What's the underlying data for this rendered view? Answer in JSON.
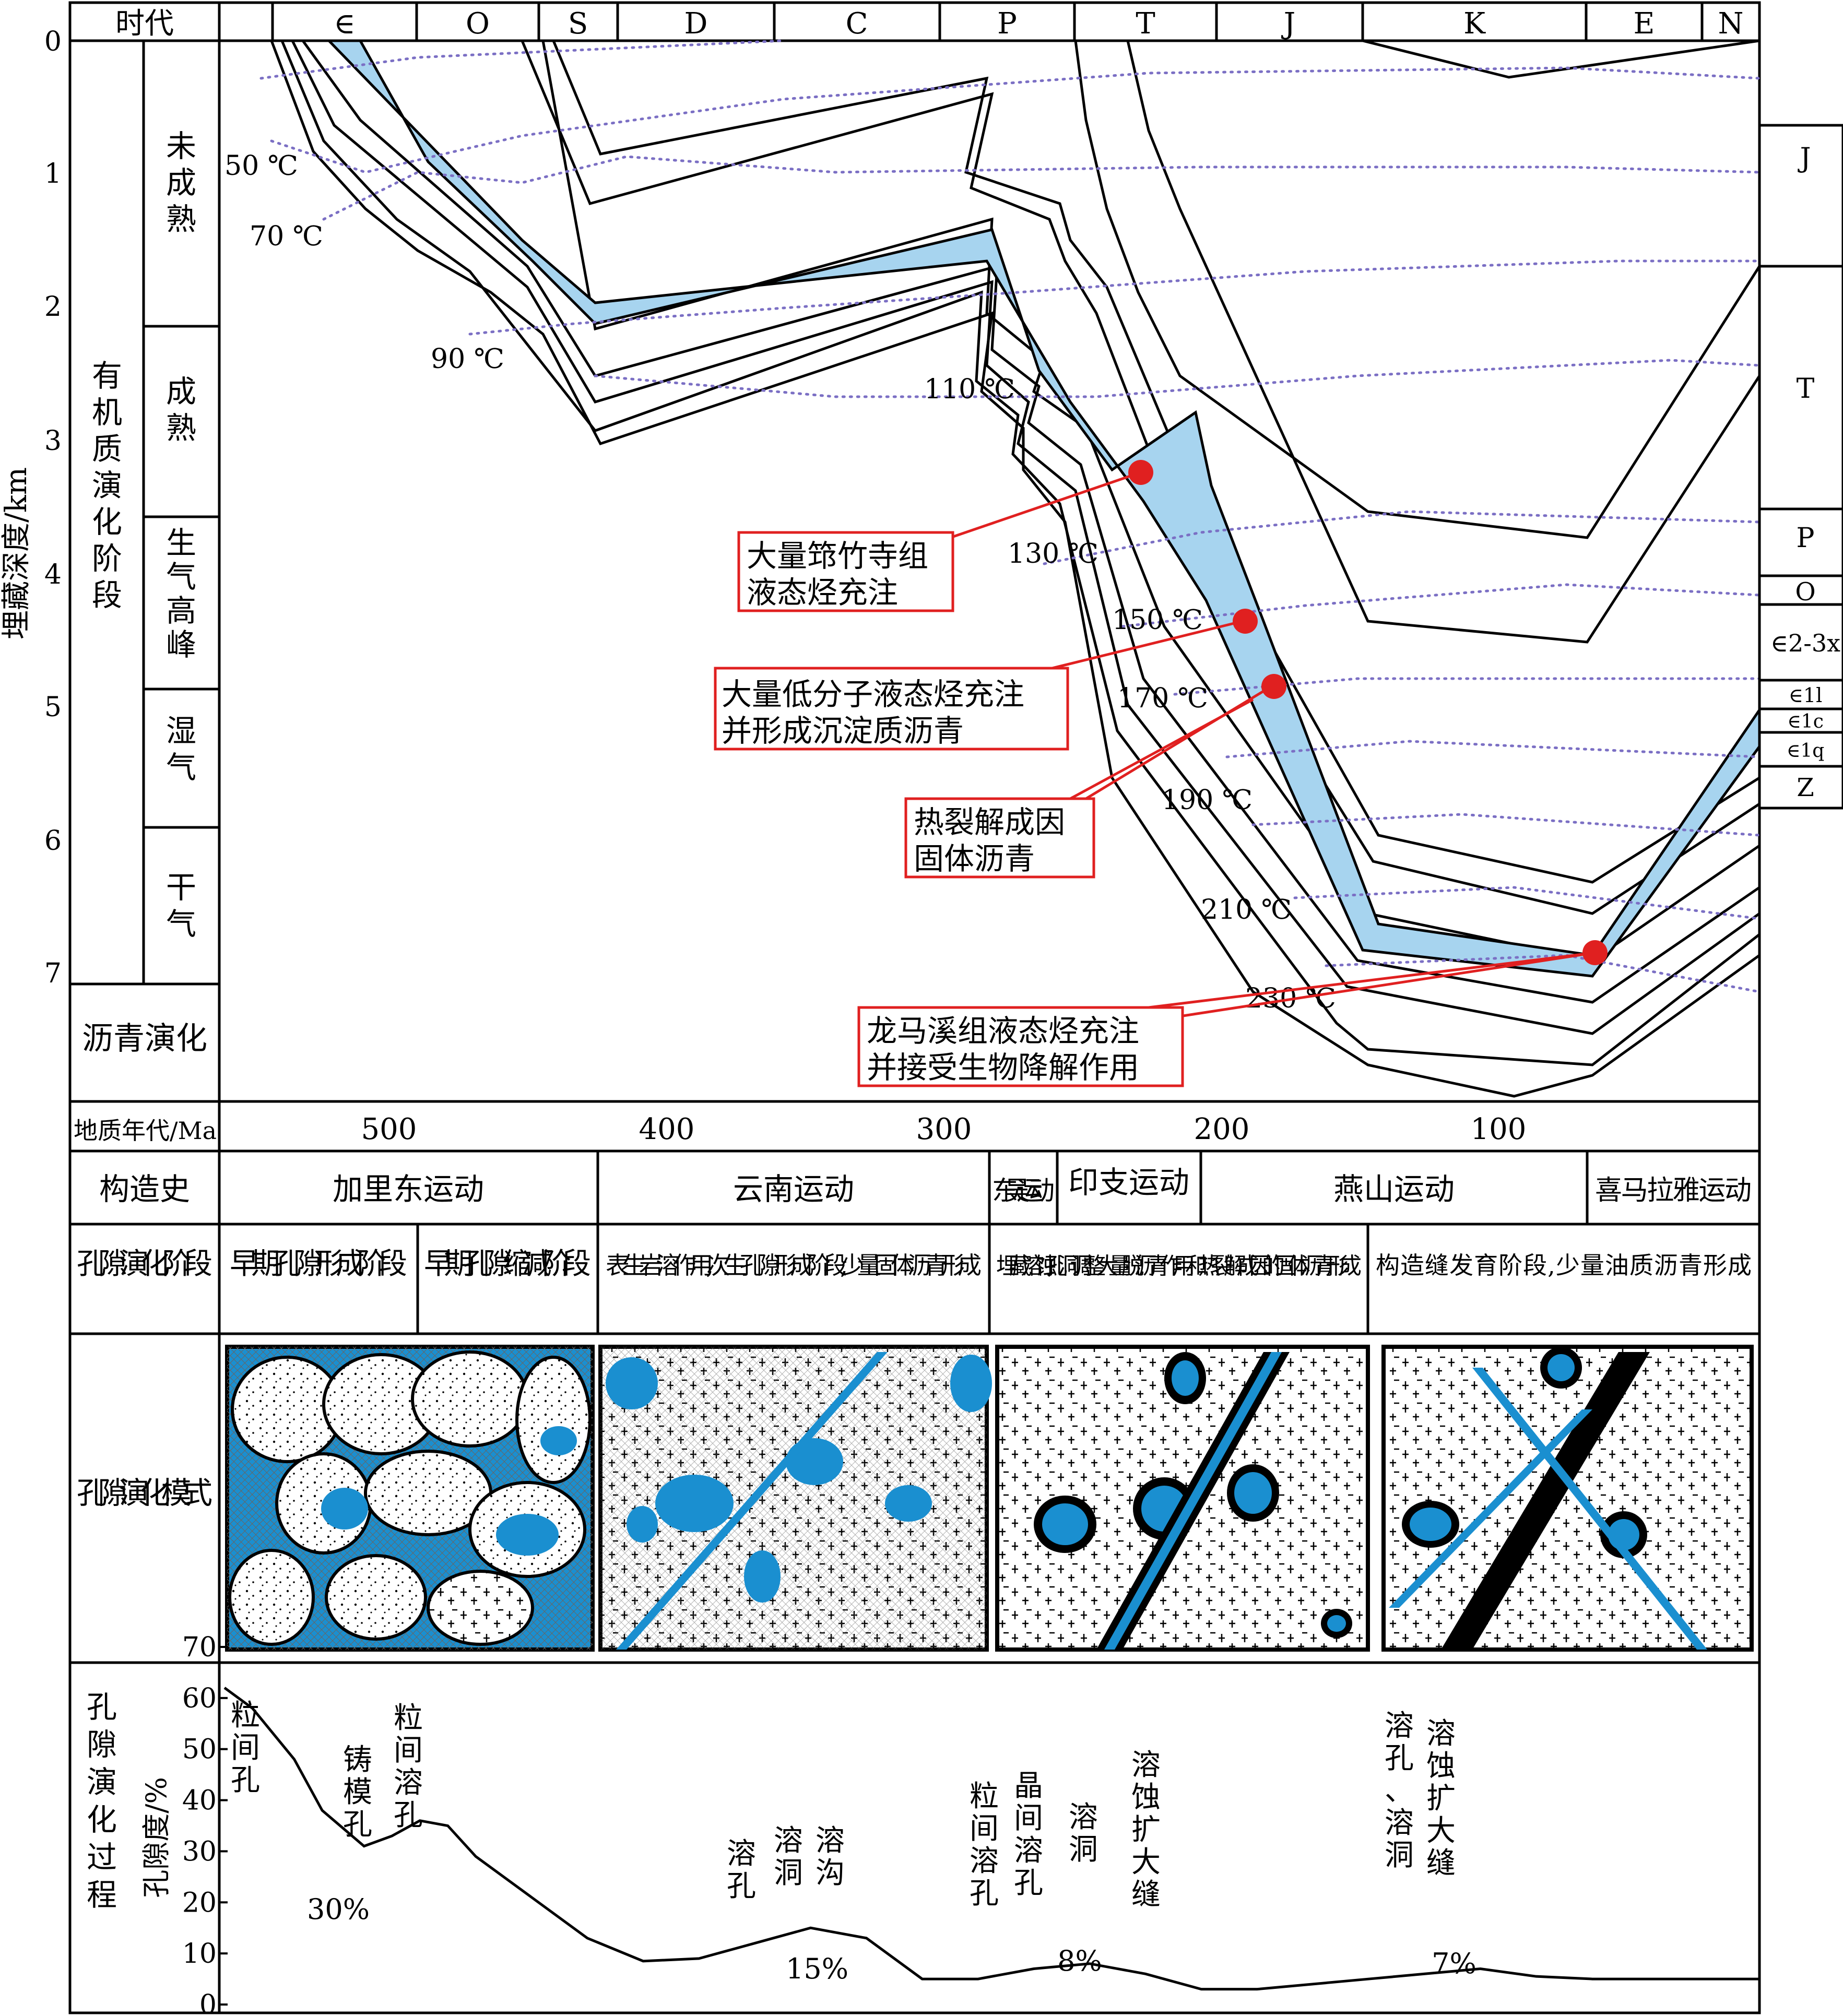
{
  "header": {
    "era_label": "时代",
    "periods": [
      "∈",
      "O",
      "S",
      "D",
      "C",
      "P",
      "T",
      "J",
      "K",
      "E",
      "N"
    ]
  },
  "depth_axis": {
    "title": "埋藏深度/km",
    "ticks": [
      "0",
      "1",
      "2",
      "3",
      "4",
      "5",
      "6",
      "7"
    ]
  },
  "organic_stage": {
    "title": "有机质演化阶段",
    "stages": [
      "未成熟",
      "成熟",
      "生气高峰",
      "湿气",
      "干气"
    ],
    "bitumen": "沥青演化"
  },
  "isotherms": [
    "50 ℃",
    "70 ℃",
    "90 ℃",
    "110 ℃",
    "130 ℃",
    "150 ℃",
    "170 ℃",
    "190 ℃",
    "210 ℃",
    "230 ℃"
  ],
  "right_strata": [
    "J",
    "T",
    "P",
    "O",
    "∈2-3x",
    "∈1l",
    "∈1c",
    "∈1q",
    "Z"
  ],
  "callouts": [
    {
      "lines": [
        "大量筇竹寺组",
        "液态烃充注"
      ]
    },
    {
      "lines": [
        "大量低分子液态烃充注",
        "并形成沉淀质沥青"
      ]
    },
    {
      "lines": [
        "热裂解成因",
        "固体沥青"
      ]
    },
    {
      "lines": [
        "龙马溪组液态烃充注",
        "并接受生物降解作用"
      ]
    }
  ],
  "time_axis": {
    "label": "地质年代/Ma",
    "ticks": [
      "500",
      "400",
      "300",
      "200",
      "100"
    ]
  },
  "tectonic": {
    "label": "构造史",
    "events": [
      "加里东运动",
      "云南运动",
      "东吴运动",
      "印支运动",
      "燕山运动",
      "喜马拉雅运动"
    ]
  },
  "pore_stage": {
    "label": "孔隙演化阶段",
    "stages": [
      "早期孔隙形成阶段",
      "早期孔隙缩减阶段",
      "表生岩溶作用,次生孔隙形成阶段,少量固体沥青形成",
      "埋藏溶蚀,孔洞调整大量脱沥青作用和热裂解成因的固体沥青形成",
      "构造缝发育阶段,少量油质沥青形成"
    ]
  },
  "pore_model": {
    "label": "孔隙演化模式"
  },
  "pore_process": {
    "label": "孔隙演化过程",
    "axis_title": "孔隙度/%",
    "ticks": [
      "70",
      "60",
      "50",
      "40",
      "30",
      "20",
      "10",
      "0"
    ],
    "pore_types": [
      "粒间孔",
      "铸模孔",
      "粒间溶孔",
      "溶孔",
      "溶洞",
      "溶沟",
      "粒间溶孔",
      "晶间溶孔",
      "溶洞",
      "溶蚀扩大缝",
      "溶孔、溶洞",
      "溶蚀扩大缝"
    ],
    "values_labels": [
      "30%",
      "15%",
      "8%",
      "7%"
    ]
  },
  "chart_data": {
    "type": "line",
    "x": [
      550,
      540,
      525,
      515,
      500,
      490,
      480,
      470,
      460,
      440,
      420,
      400,
      380,
      360,
      340,
      320,
      300,
      280,
      260,
      240,
      220,
      200,
      180,
      160,
      140,
      120,
      100,
      80,
      60,
      40,
      20,
      0
    ],
    "series": [
      {
        "values": [
          62,
          58,
          48,
          38,
          31,
          33,
          36,
          35,
          29,
          21,
          13,
          8.5,
          9,
          12,
          15,
          13,
          5,
          5,
          7,
          8,
          6,
          3,
          3,
          4,
          5,
          6,
          7,
          5.5,
          5,
          5,
          5,
          5
        ]
      }
    ],
    "xlabel": "地质年代/Ma",
    "ylabel": "孔隙度/%",
    "ylim": [
      0,
      70
    ],
    "xlim": [
      550,
      0
    ]
  },
  "colors": {
    "oil_band": "#a7d4ef",
    "pore": "#1a8fd0",
    "callout": "#e02020",
    "isotherm": "#7b6fc4"
  }
}
